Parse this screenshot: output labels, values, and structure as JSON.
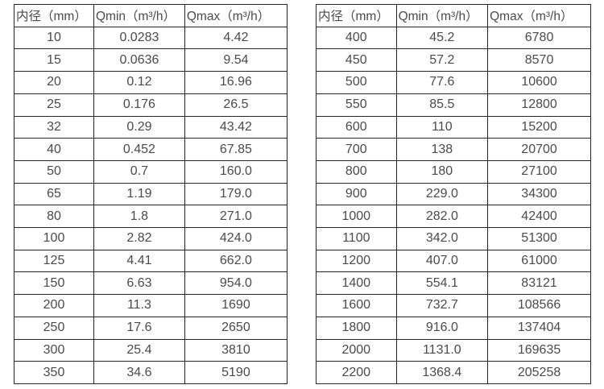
{
  "column_headers": [
    "内径（mm）",
    "Qmin（m³/h）",
    "Qmax（m³/h）"
  ],
  "left_table": {
    "rows": [
      [
        "10",
        "0.0283",
        "4.42"
      ],
      [
        "15",
        "0.0636",
        "9.54"
      ],
      [
        "20",
        "0.12",
        "16.96"
      ],
      [
        "25",
        "0.176",
        "26.5"
      ],
      [
        "32",
        "0.29",
        "43.42"
      ],
      [
        "40",
        "0.452",
        "67.85"
      ],
      [
        "50",
        "0.7",
        "160.0"
      ],
      [
        "65",
        "1.19",
        "179.0"
      ],
      [
        "80",
        "1.8",
        "271.0"
      ],
      [
        "100",
        "2.82",
        "424.0"
      ],
      [
        "125",
        "4.41",
        "662.0"
      ],
      [
        "150",
        "6.63",
        "954.0"
      ],
      [
        "200",
        "11.3",
        "1690"
      ],
      [
        "250",
        "17.6",
        "2650"
      ],
      [
        "300",
        "25.4",
        "3810"
      ],
      [
        "350",
        "34.6",
        "5190"
      ]
    ]
  },
  "right_table": {
    "rows": [
      [
        "400",
        "45.2",
        "6780"
      ],
      [
        "450",
        "57.2",
        "8570"
      ],
      [
        "500",
        "77.6",
        "10600"
      ],
      [
        "550",
        "85.5",
        "12800"
      ],
      [
        "600",
        "110",
        "15200"
      ],
      [
        "700",
        "138",
        "20700"
      ],
      [
        "800",
        "180",
        "27100"
      ],
      [
        "900",
        "229.0",
        "34300"
      ],
      [
        "1000",
        "282.0",
        "42400"
      ],
      [
        "1100",
        "342.0",
        "51300"
      ],
      [
        "1200",
        "407.0",
        "61000"
      ],
      [
        "1400",
        "554.1",
        "83121"
      ],
      [
        "1600",
        "732.7",
        "108566"
      ],
      [
        "1800",
        "916.0",
        "137404"
      ],
      [
        "2000",
        "1131.0",
        "169635"
      ],
      [
        "2200",
        "1368.4",
        "205258"
      ]
    ]
  }
}
